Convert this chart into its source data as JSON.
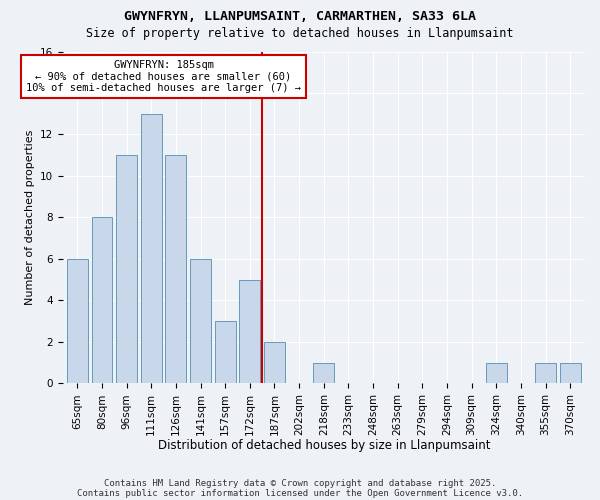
{
  "title": "GWYNFRYN, LLANPUMSAINT, CARMARTHEN, SA33 6LA",
  "subtitle": "Size of property relative to detached houses in Llanpumsaint",
  "xlabel": "Distribution of detached houses by size in Llanpumsaint",
  "ylabel": "Number of detached properties",
  "categories": [
    "65sqm",
    "80sqm",
    "96sqm",
    "111sqm",
    "126sqm",
    "141sqm",
    "157sqm",
    "172sqm",
    "187sqm",
    "202sqm",
    "218sqm",
    "233sqm",
    "248sqm",
    "263sqm",
    "279sqm",
    "294sqm",
    "309sqm",
    "324sqm",
    "340sqm",
    "355sqm",
    "370sqm"
  ],
  "values": [
    6,
    8,
    11,
    13,
    11,
    6,
    3,
    5,
    2,
    0,
    1,
    0,
    0,
    0,
    0,
    0,
    0,
    1,
    0,
    1,
    1
  ],
  "bar_color": "#c8d8ea",
  "bar_edge_color": "#6699bb",
  "vline_x_index": 8,
  "vline_color": "#cc0000",
  "annotation_text": "GWYNFRYN: 185sqm\n← 90% of detached houses are smaller (60)\n10% of semi-detached houses are larger (7) →",
  "annotation_box_edge_color": "#cc0000",
  "annotation_box_face_color": "#ffffff",
  "ylim": [
    0,
    16
  ],
  "yticks": [
    0,
    2,
    4,
    6,
    8,
    10,
    12,
    14,
    16
  ],
  "footer_line1": "Contains HM Land Registry data © Crown copyright and database right 2025.",
  "footer_line2": "Contains public sector information licensed under the Open Government Licence v3.0.",
  "background_color": "#eef2f7",
  "grid_color": "#ffffff",
  "title_fontsize": 9.5,
  "subtitle_fontsize": 8.5,
  "xlabel_fontsize": 8.5,
  "ylabel_fontsize": 8,
  "tick_fontsize": 7.5,
  "ann_fontsize": 7.5,
  "footer_fontsize": 6.5
}
